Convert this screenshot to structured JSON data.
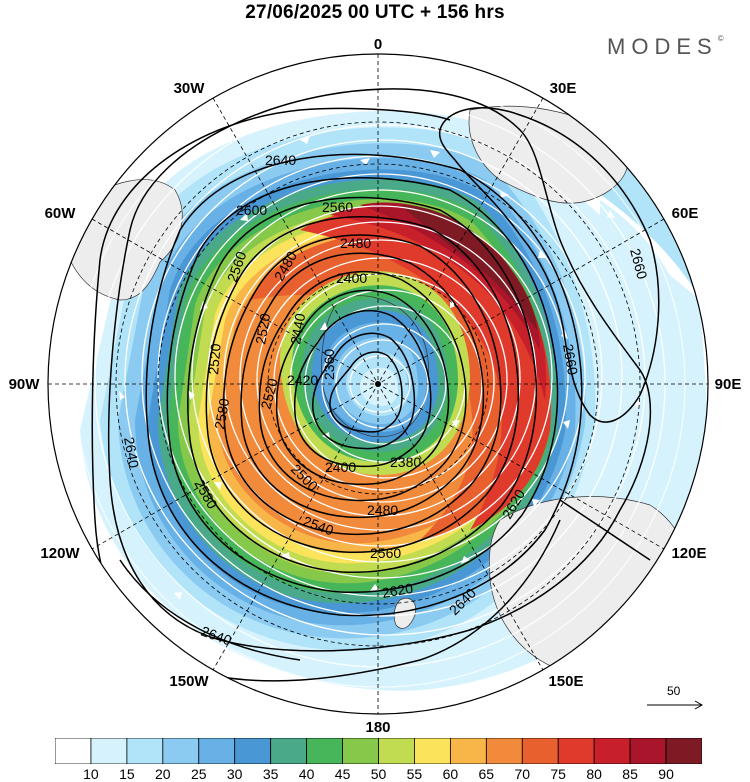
{
  "title": "27/06/2025  00 UTC  + 156 hrs",
  "brand": "MODES",
  "brand_mark": "©",
  "longitude_labels": {
    "lon0": "0",
    "lon30e": "30E",
    "lon60e": "60E",
    "lon90e": "90E",
    "lon120e": "120E",
    "lon150e": "150E",
    "lon180": "180",
    "lon150w": "150W",
    "lon120w": "120W",
    "lon90w": "90W",
    "lon60w": "60W",
    "lon30w": "30W"
  },
  "contour_labels": [
    "2640",
    "2600",
    "2560",
    "2480",
    "2480",
    "2400",
    "2560",
    "2520",
    "2440",
    "2520",
    "2420",
    "2360",
    "2580",
    "2520",
    "2400",
    "2380",
    "2500",
    "2480",
    "2540",
    "2560",
    "2620",
    "2640",
    "2620",
    "2640",
    "2660",
    "2660",
    "2640",
    "2580"
  ],
  "colorbar": {
    "ticks": [
      "10",
      "15",
      "20",
      "25",
      "30",
      "35",
      "40",
      "45",
      "50",
      "55",
      "60",
      "65",
      "70",
      "75",
      "80",
      "85",
      "90"
    ],
    "colors": [
      "#ffffff",
      "#d6f3fd",
      "#b1e3f9",
      "#8ccbf1",
      "#67b1e6",
      "#4a97d6",
      "#49a988",
      "#47b55a",
      "#86c84a",
      "#c2dc52",
      "#fbe45c",
      "#f8b649",
      "#f18a3a",
      "#e9602f",
      "#df3a2b",
      "#c7202a",
      "#a9152a",
      "#7e1a24"
    ]
  },
  "reference_vector": {
    "label": "50"
  },
  "map_features": [
    "antarctica-land",
    "south-america-land",
    "africa-land",
    "australia-land",
    "new-zealand-land"
  ]
}
